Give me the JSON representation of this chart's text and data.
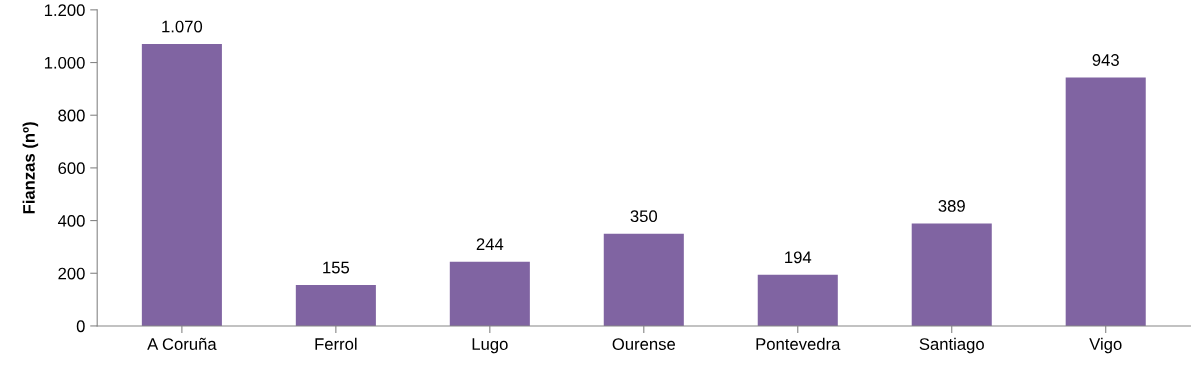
{
  "chart_data": {
    "type": "bar",
    "ylabel": "Fianzas (nº)",
    "categories": [
      "A Coruña",
      "Ferrol",
      "Lugo",
      "Ourense",
      "Pontevedra",
      "Santiago",
      "Vigo"
    ],
    "values": [
      1070,
      155,
      244,
      350,
      194,
      389,
      943
    ],
    "value_labels": [
      "1.070",
      "155",
      "244",
      "350",
      "194",
      "389",
      "943"
    ],
    "color": "#8064a2",
    "ylim": [
      0,
      1200
    ],
    "yticks": [
      0,
      200,
      400,
      600,
      800,
      {
        "value": 1000,
        "label": "1.000"
      },
      {
        "value": 1200,
        "label": "1.200"
      }
    ],
    "grid": false,
    "legend": false
  }
}
